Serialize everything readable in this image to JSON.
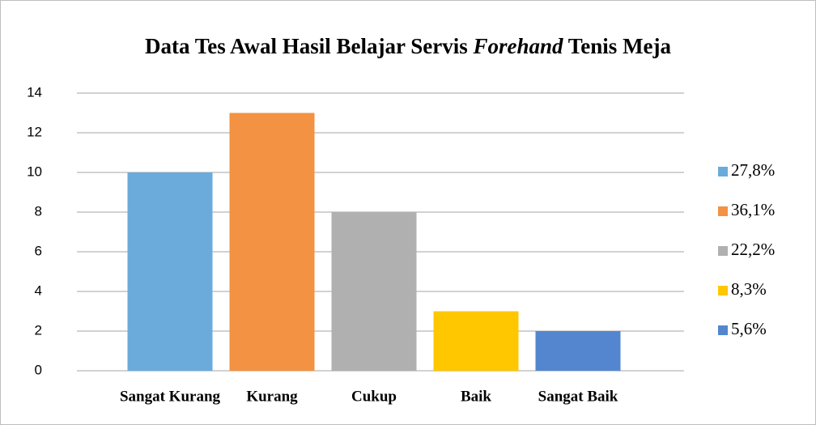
{
  "chart_data": {
    "type": "bar",
    "title": [
      "Data Tes Awal Hasil Belajar Servis ",
      "Forehand",
      " Tenis Meja"
    ],
    "categories": [
      "Sangat Kurang",
      "Kurang",
      "Cukup",
      "Baik",
      "Sangat Baik"
    ],
    "values": [
      10,
      13,
      8,
      3,
      2
    ],
    "colors": [
      "#6aabdc",
      "#f39242",
      "#b0b0b0",
      "#ffc700",
      "#5386cf"
    ],
    "legend": [
      "27,8%",
      "36,1%",
      "22,2%",
      "8,3%",
      "5,6%"
    ],
    "ylim": [
      0,
      14
    ],
    "yticks": [
      0,
      2,
      4,
      6,
      8,
      10,
      12,
      14
    ],
    "grid": true
  }
}
